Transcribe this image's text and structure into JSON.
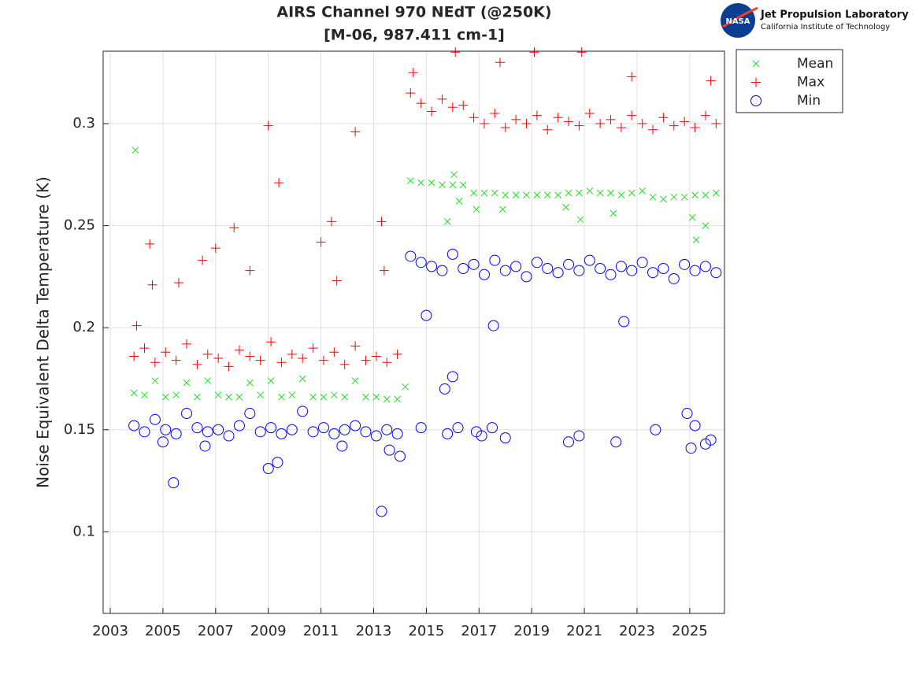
{
  "logo": {
    "agency": "NASA",
    "name": "Jet Propulsion Laboratory",
    "subtitle": "California Institute of Technology"
  },
  "chart_data": {
    "type": "scatter",
    "title": [
      "AIRS Channel 970 NEdT (@250K)",
      "[M-06, 987.411 cm-1]"
    ],
    "y_label": "Noise Equivalent Delta Temperature (K)",
    "xlim": [
      2002.73,
      2026.32
    ],
    "ylim": [
      0.06,
      0.3355
    ],
    "xticks": [
      2003,
      2005,
      2007,
      2009,
      2011,
      2013,
      2015,
      2017,
      2019,
      2021,
      2023,
      2025
    ],
    "yticks": [
      0.1,
      0.15,
      0.2,
      0.25,
      0.3
    ],
    "grid": true,
    "legend": "outside-top-right",
    "series": [
      {
        "name": "Mean",
        "color": "#22e022",
        "marker": "x",
        "x": [
          2003.9,
          2004.3,
          2004.7,
          2005.1,
          2005.5,
          2005.9,
          2006.3,
          2006.7,
          2007.1,
          2007.5,
          2007.9,
          2008.3,
          2008.7,
          2009.1,
          2009.5,
          2009.9,
          2010.3,
          2010.7,
          2011.1,
          2011.5,
          2011.9,
          2012.3,
          2012.7,
          2013.1,
          2013.5,
          2013.9,
          2014.4,
          2014.8,
          2015.2,
          2015.6,
          2016.0,
          2016.4,
          2016.8,
          2017.2,
          2017.6,
          2018.0,
          2018.4,
          2018.8,
          2019.2,
          2019.6,
          2020.0,
          2020.4,
          2020.8,
          2021.2,
          2021.6,
          2022.0,
          2022.4,
          2022.8,
          2023.2,
          2023.6,
          2024.0,
          2024.4,
          2024.8,
          2025.2,
          2025.6,
          2026.0,
          2003.95,
          2014.2,
          2015.8,
          2016.05,
          2016.25,
          2016.9,
          2017.9,
          2020.3,
          2020.85,
          2022.1,
          2025.1,
          2025.25,
          2025.6
        ],
        "values": [
          0.168,
          0.167,
          0.174,
          0.166,
          0.167,
          0.173,
          0.166,
          0.174,
          0.167,
          0.166,
          0.166,
          0.173,
          0.167,
          0.174,
          0.166,
          0.167,
          0.175,
          0.166,
          0.166,
          0.167,
          0.166,
          0.174,
          0.166,
          0.166,
          0.165,
          0.165,
          0.272,
          0.271,
          0.271,
          0.27,
          0.27,
          0.27,
          0.266,
          0.266,
          0.266,
          0.265,
          0.265,
          0.265,
          0.265,
          0.265,
          0.265,
          0.266,
          0.266,
          0.267,
          0.266,
          0.266,
          0.265,
          0.266,
          0.267,
          0.264,
          0.263,
          0.264,
          0.264,
          0.265,
          0.265,
          0.266,
          0.287,
          0.171,
          0.252,
          0.275,
          0.262,
          0.258,
          0.258,
          0.259,
          0.253,
          0.256,
          0.254,
          0.243,
          0.25
        ]
      },
      {
        "name": "Max",
        "color": "#ff0000",
        "marker": "+",
        "x": [
          2003.9,
          2004.3,
          2004.7,
          2005.1,
          2005.5,
          2005.9,
          2006.3,
          2006.7,
          2007.1,
          2007.5,
          2007.9,
          2008.3,
          2008.7,
          2009.1,
          2009.5,
          2009.9,
          2010.3,
          2010.7,
          2011.1,
          2011.5,
          2011.9,
          2012.3,
          2012.7,
          2013.1,
          2013.5,
          2013.9,
          2014.4,
          2014.8,
          2015.2,
          2015.6,
          2016.0,
          2016.4,
          2016.8,
          2017.2,
          2017.6,
          2018.0,
          2018.4,
          2018.8,
          2019.2,
          2019.6,
          2020.0,
          2020.4,
          2020.8,
          2021.2,
          2021.6,
          2022.0,
          2022.4,
          2022.8,
          2023.2,
          2023.6,
          2024.0,
          2024.4,
          2024.8,
          2025.2,
          2025.6,
          2026.0,
          2004.0,
          2004.5,
          2004.6,
          2005.6,
          2006.5,
          2007.0,
          2007.7,
          2008.3,
          2009.0,
          2009.4,
          2011.0,
          2011.4,
          2011.6,
          2012.3,
          2013.3,
          2013.4,
          2016.1,
          2017.8,
          2019.1,
          2020.9,
          2022.8,
          2014.5,
          2025.8
        ],
        "values": [
          0.186,
          0.19,
          0.183,
          0.188,
          0.184,
          0.192,
          0.182,
          0.187,
          0.185,
          0.181,
          0.189,
          0.186,
          0.184,
          0.193,
          0.183,
          0.187,
          0.185,
          0.19,
          0.184,
          0.188,
          0.182,
          0.191,
          0.184,
          0.186,
          0.183,
          0.187,
          0.315,
          0.31,
          0.306,
          0.312,
          0.308,
          0.309,
          0.303,
          0.3,
          0.305,
          0.298,
          0.302,
          0.3,
          0.304,
          0.297,
          0.303,
          0.301,
          0.299,
          0.305,
          0.3,
          0.302,
          0.298,
          0.304,
          0.3,
          0.297,
          0.303,
          0.299,
          0.301,
          0.298,
          0.304,
          0.3,
          0.201,
          0.241,
          0.221,
          0.222,
          0.233,
          0.239,
          0.249,
          0.228,
          0.299,
          0.271,
          0.242,
          0.252,
          0.223,
          0.296,
          0.252,
          0.228,
          0.335,
          0.33,
          0.335,
          0.335,
          0.323,
          0.325,
          0.321
        ]
      },
      {
        "name": "Min",
        "color": "#0000ff",
        "marker": "o",
        "x": [
          2003.9,
          2004.3,
          2004.7,
          2005.1,
          2005.5,
          2005.9,
          2006.3,
          2006.7,
          2007.1,
          2007.5,
          2007.9,
          2008.3,
          2008.7,
          2009.1,
          2009.5,
          2009.9,
          2010.3,
          2010.7,
          2011.1,
          2011.5,
          2011.9,
          2012.3,
          2012.7,
          2013.1,
          2013.5,
          2013.9,
          2014.4,
          2014.8,
          2015.2,
          2015.6,
          2016.0,
          2016.4,
          2016.8,
          2017.2,
          2017.6,
          2018.0,
          2018.4,
          2018.8,
          2019.2,
          2019.6,
          2020.0,
          2020.4,
          2020.8,
          2021.2,
          2021.6,
          2022.0,
          2022.4,
          2022.8,
          2023.2,
          2023.6,
          2024.0,
          2024.4,
          2024.8,
          2025.2,
          2025.6,
          2026.0,
          2005.4,
          2009.0,
          2009.35,
          2013.3,
          2014.0,
          2014.8,
          2015.0,
          2015.7,
          2015.8,
          2016.0,
          2016.2,
          2016.9,
          2017.1,
          2017.5,
          2017.55,
          2018.0,
          2020.4,
          2020.8,
          2022.2,
          2022.5,
          2023.7,
          2024.9,
          2025.05,
          2025.2,
          2025.6,
          2025.8,
          2005.0,
          2006.6,
          2011.8,
          2013.6
        ],
        "values": [
          0.152,
          0.149,
          0.155,
          0.15,
          0.148,
          0.158,
          0.151,
          0.149,
          0.15,
          0.147,
          0.152,
          0.158,
          0.149,
          0.151,
          0.148,
          0.15,
          0.159,
          0.149,
          0.151,
          0.148,
          0.15,
          0.152,
          0.149,
          0.147,
          0.15,
          0.148,
          0.235,
          0.232,
          0.23,
          0.228,
          0.236,
          0.229,
          0.231,
          0.226,
          0.233,
          0.228,
          0.23,
          0.225,
          0.232,
          0.229,
          0.227,
          0.231,
          0.228,
          0.233,
          0.229,
          0.226,
          0.23,
          0.228,
          0.232,
          0.227,
          0.229,
          0.224,
          0.231,
          0.228,
          0.23,
          0.227,
          0.124,
          0.131,
          0.134,
          0.11,
          0.137,
          0.151,
          0.206,
          0.17,
          0.148,
          0.176,
          0.151,
          0.149,
          0.147,
          0.151,
          0.201,
          0.146,
          0.144,
          0.147,
          0.144,
          0.203,
          0.15,
          0.158,
          0.141,
          0.152,
          0.143,
          0.145,
          0.144,
          0.142,
          0.142,
          0.14
        ]
      }
    ]
  }
}
